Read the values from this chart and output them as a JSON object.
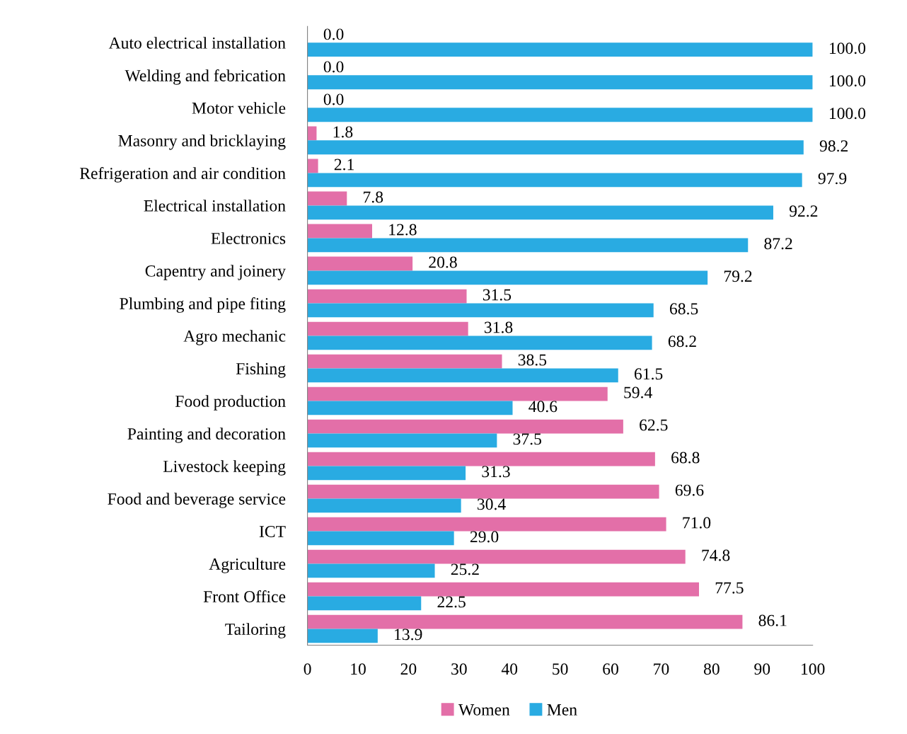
{
  "chart_data": {
    "type": "bar",
    "orientation": "horizontal",
    "categories": [
      "Auto electrical installation",
      "Welding and febrication",
      "Motor vehicle",
      "Masonry and bricklaying",
      "Refrigeration and air condition",
      "Electrical installation",
      "Electronics",
      "Capentry and joinery",
      "Plumbing and pipe fiting",
      "Agro mechanic",
      "Fishing",
      "Food production",
      "Painting and decoration",
      "Livestock keeping",
      "Food and beverage service",
      "ICT",
      "Agriculture",
      "Front Office",
      "Tailoring"
    ],
    "series": [
      {
        "name": "Women",
        "color": "#e36fa8",
        "values": [
          0.0,
          0.0,
          0.0,
          1.8,
          2.1,
          7.8,
          12.8,
          20.8,
          31.5,
          31.8,
          38.5,
          59.4,
          62.5,
          68.8,
          69.6,
          71.0,
          74.8,
          77.5,
          86.1
        ],
        "value_labels": [
          "0.0",
          "0.0",
          "0.0",
          "1.8",
          "2.1",
          "7.8",
          "12.8",
          "20.8",
          "31.5",
          "31.8",
          "38.5",
          "59.4",
          "62.5",
          "68.8",
          "69.6",
          "71.0",
          "74.8",
          "77.5",
          "86.1"
        ]
      },
      {
        "name": "Men",
        "color": "#29abe2",
        "values": [
          100.0,
          100.0,
          100.0,
          98.2,
          97.9,
          92.2,
          87.2,
          79.2,
          68.5,
          68.2,
          61.5,
          40.6,
          37.5,
          31.3,
          30.4,
          29.0,
          25.2,
          22.5,
          13.9
        ],
        "value_labels": [
          "100.0",
          "100.0",
          "100.0",
          "98.2",
          "97.9",
          "92.2",
          "87.2",
          "79.2",
          "68.5",
          "68.2",
          "61.5",
          "40.6",
          "37.5",
          "31.3",
          "30.4",
          "29.0",
          "25.2",
          "22.5",
          "13.9"
        ]
      }
    ],
    "xlim": [
      0,
      100
    ],
    "xticks": [
      0,
      10,
      20,
      30,
      40,
      50,
      60,
      70,
      80,
      90,
      100
    ],
    "grid": false,
    "legend": "bottom"
  }
}
